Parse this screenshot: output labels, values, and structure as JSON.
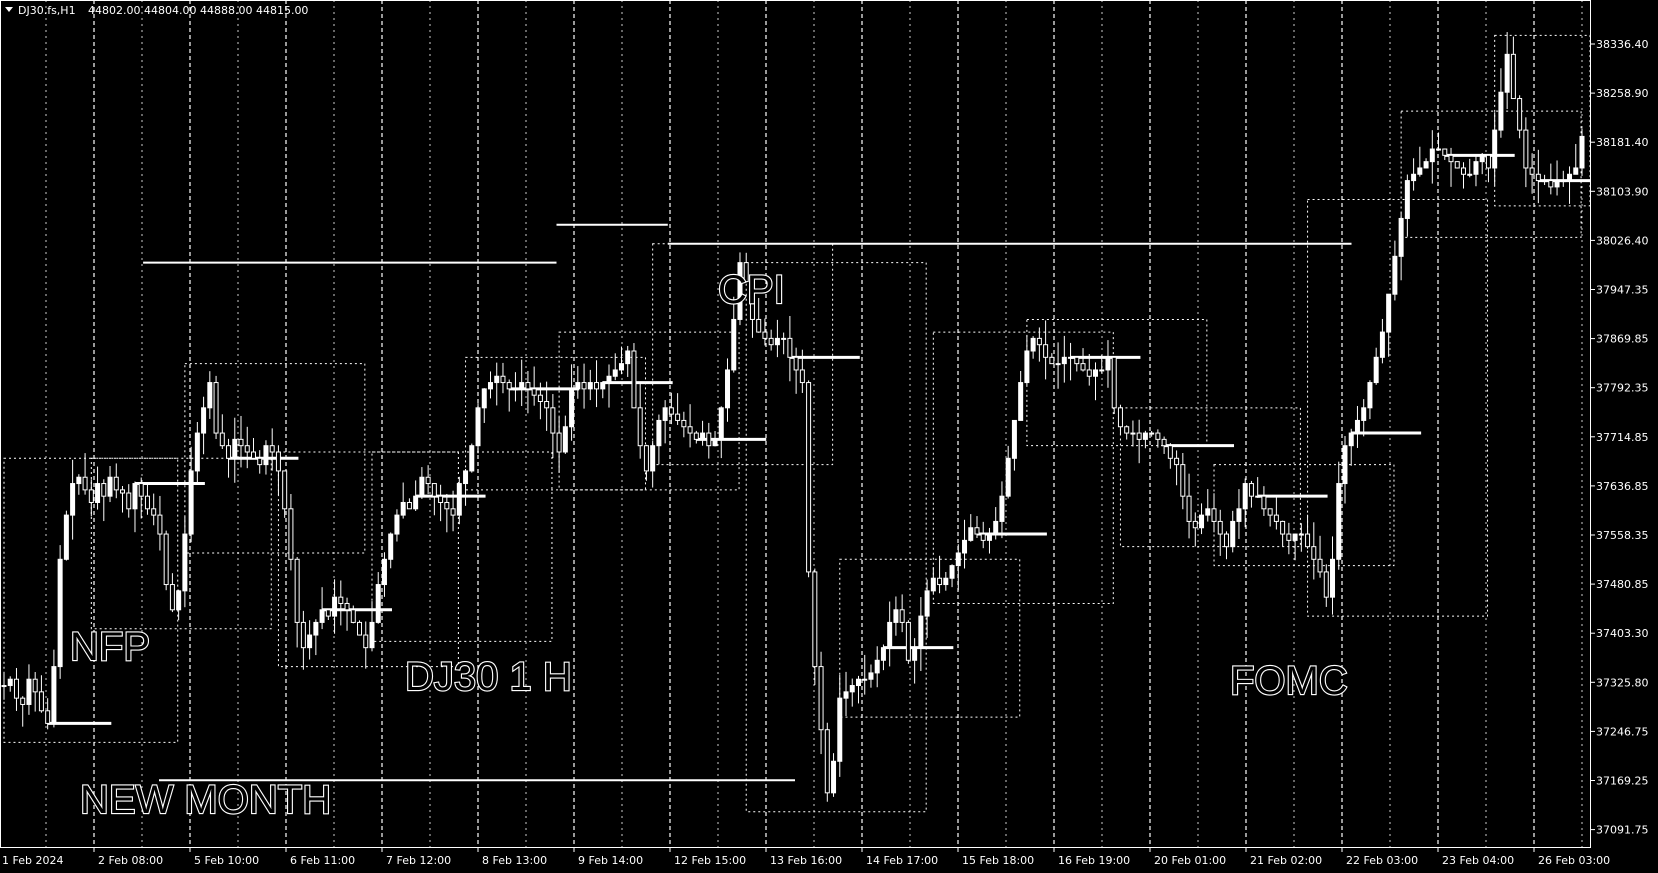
{
  "header": {
    "symbol": "DJ30.fs,H1",
    "ohlc": "44802.00 44804.00 44888.00 44815.00"
  },
  "colors": {
    "background": "#000000",
    "foreground": "#ffffff",
    "grid": "#ffffff"
  },
  "icons": {
    "header": "triangle-down-icon"
  },
  "chart_data": {
    "type": "candlestick",
    "title": "DJ30 1 H",
    "grid": true,
    "y_tick_labels": [
      "38336.40",
      "38258.90",
      "38181.40",
      "38103.90",
      "38026.40",
      "37947.35",
      "37869.85",
      "37792.35",
      "37714.85",
      "37636.85",
      "37558.35",
      "37480.85",
      "37403.30",
      "37325.80",
      "37246.75",
      "37169.25",
      "37091.75"
    ],
    "x_tick_labels": [
      "1 Feb 2024",
      "2 Feb 08:00",
      "5 Feb 10:00",
      "6 Feb 11:00",
      "7 Feb 12:00",
      "8 Feb 13:00",
      "9 Feb 14:00",
      "12 Feb 15:00",
      "13 Feb 16:00",
      "14 Feb 17:00",
      "15 Feb 18:00",
      "16 Feb 19:00",
      "20 Feb 01:00",
      "21 Feb 02:00",
      "22 Feb 03:00",
      "23 Feb 04:00",
      "26 Feb 03:00"
    ],
    "annotations": [
      "NFP",
      "DJ30 1 H",
      "CPI",
      "NEW MONTH",
      "FOMC"
    ],
    "price_series": [
      37320,
      37330,
      37300,
      37290,
      37330,
      37310,
      37280,
      37260,
      37350,
      37520,
      37590,
      37640,
      37650,
      37630,
      37610,
      37640,
      37620,
      37650,
      37630,
      37625,
      37600,
      37640,
      37620,
      37600,
      37590,
      37560,
      37480,
      37440,
      37470,
      37560,
      37660,
      37720,
      37760,
      37800,
      37720,
      37700,
      37680,
      37710,
      37700,
      37690,
      37680,
      37670,
      37700,
      37690,
      37660,
      37600,
      37520,
      37420,
      37380,
      37400,
      37420,
      37440,
      37430,
      37460,
      37450,
      37440,
      37420,
      37400,
      37380,
      37420,
      37480,
      37520,
      37560,
      37590,
      37610,
      37600,
      37620,
      37650,
      37640,
      37620,
      37610,
      37600,
      37590,
      37640,
      37660,
      37700,
      37760,
      37790,
      37800,
      37810,
      37800,
      37790,
      37790,
      37800,
      37790,
      37780,
      37770,
      37760,
      37720,
      37690,
      37730,
      37790,
      37800,
      37790,
      37800,
      37790,
      37800,
      37810,
      37820,
      37830,
      37850,
      37760,
      37700,
      37660,
      37700,
      37740,
      37760,
      37750,
      37740,
      37730,
      37720,
      37710,
      37720,
      37700,
      37710,
      37760,
      37820,
      37900,
      37990,
      37960,
      37900,
      37880,
      37870,
      37860,
      37870,
      37870,
      37840,
      37820,
      37800,
      37500,
      37350,
      37250,
      37150,
      37200,
      37300,
      37310,
      37320,
      37330,
      37330,
      37340,
      37360,
      37380,
      37420,
      37440,
      37420,
      37360,
      37380,
      37430,
      37470,
      37490,
      37480,
      37490,
      37510,
      37530,
      37550,
      37570,
      37560,
      37550,
      37560,
      37580,
      37620,
      37680,
      37740,
      37800,
      37850,
      37870,
      37860,
      37840,
      37830,
      37830,
      37840,
      37840,
      37830,
      37820,
      37810,
      37820,
      37820,
      37840,
      37760,
      37730,
      37720,
      37720,
      37710,
      37720,
      37720,
      37710,
      37700,
      37680,
      37670,
      37620,
      37580,
      37570,
      37590,
      37600,
      37580,
      37560,
      37540,
      37580,
      37600,
      37640,
      37620,
      37620,
      37600,
      37590,
      37580,
      37560,
      37550,
      37560,
      37560,
      37540,
      37520,
      37500,
      37460,
      37520,
      37640,
      37700,
      37720,
      37740,
      37760,
      37800,
      37840,
      37880,
      37940,
      38000,
      38060,
      38120,
      38130,
      38140,
      38150,
      38170,
      38170,
      38160,
      38150,
      38140,
      38130,
      38130,
      38150,
      38160,
      38140,
      38200,
      38260,
      38320,
      38250,
      38200,
      38140,
      38130,
      38120,
      38120,
      38110,
      38120,
      38120,
      38130,
      38140,
      38190
    ]
  }
}
